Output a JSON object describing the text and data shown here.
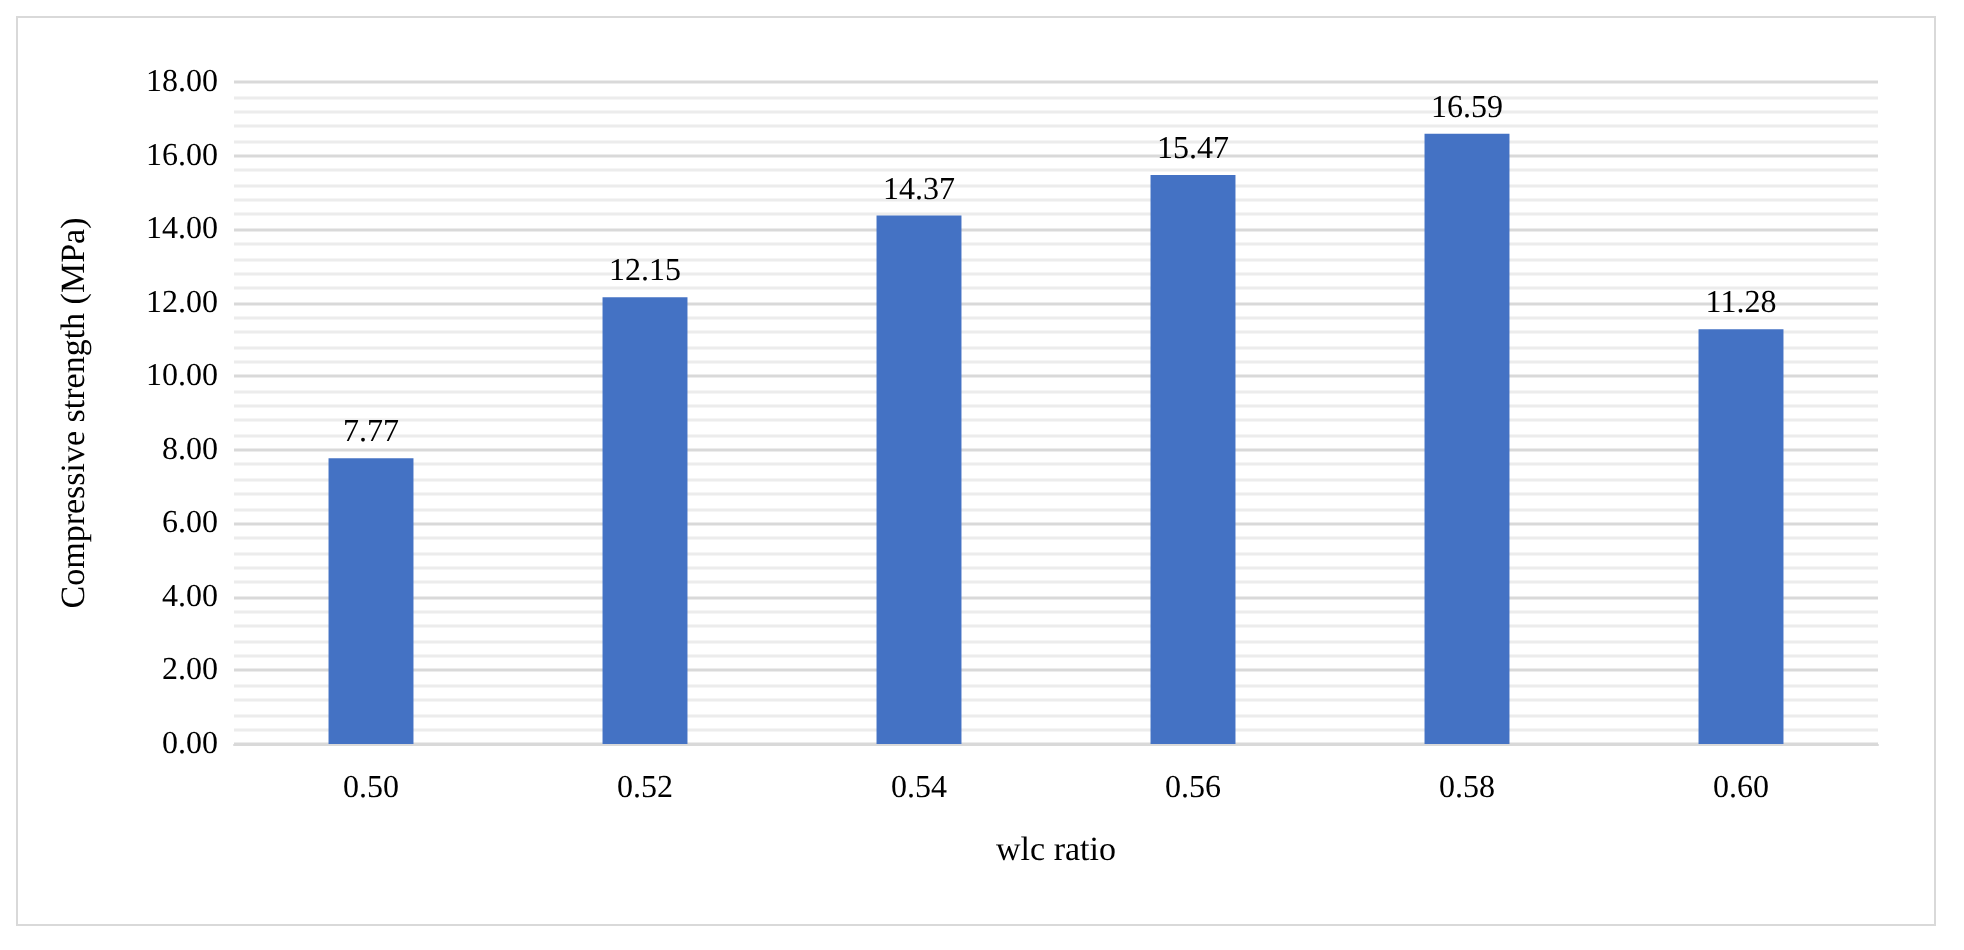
{
  "chart_data": {
    "type": "bar",
    "xlabel": "wlc ratio",
    "ylabel": "Compressive strength (MPa)",
    "categories": [
      "0.50",
      "0.52",
      "0.54",
      "0.56",
      "0.58",
      "0.60"
    ],
    "values": [
      7.77,
      12.15,
      14.37,
      15.47,
      16.59,
      11.28
    ],
    "color": "#4472c4",
    "ylim": [
      0,
      18
    ],
    "yticks": [
      {
        "value": 0,
        "label": "0.00"
      },
      {
        "value": 2,
        "label": "2.00"
      },
      {
        "value": 4,
        "label": "4.00"
      },
      {
        "value": 6,
        "label": "6.00"
      },
      {
        "value": 8,
        "label": "8.00"
      },
      {
        "value": 10,
        "label": "10.00"
      },
      {
        "value": 12,
        "label": "12.00"
      },
      {
        "value": 14,
        "label": "14.00"
      },
      {
        "value": 16,
        "label": "16.00"
      },
      {
        "value": 18,
        "label": "18.00"
      }
    ],
    "grid": "y",
    "data_labels": true
  }
}
